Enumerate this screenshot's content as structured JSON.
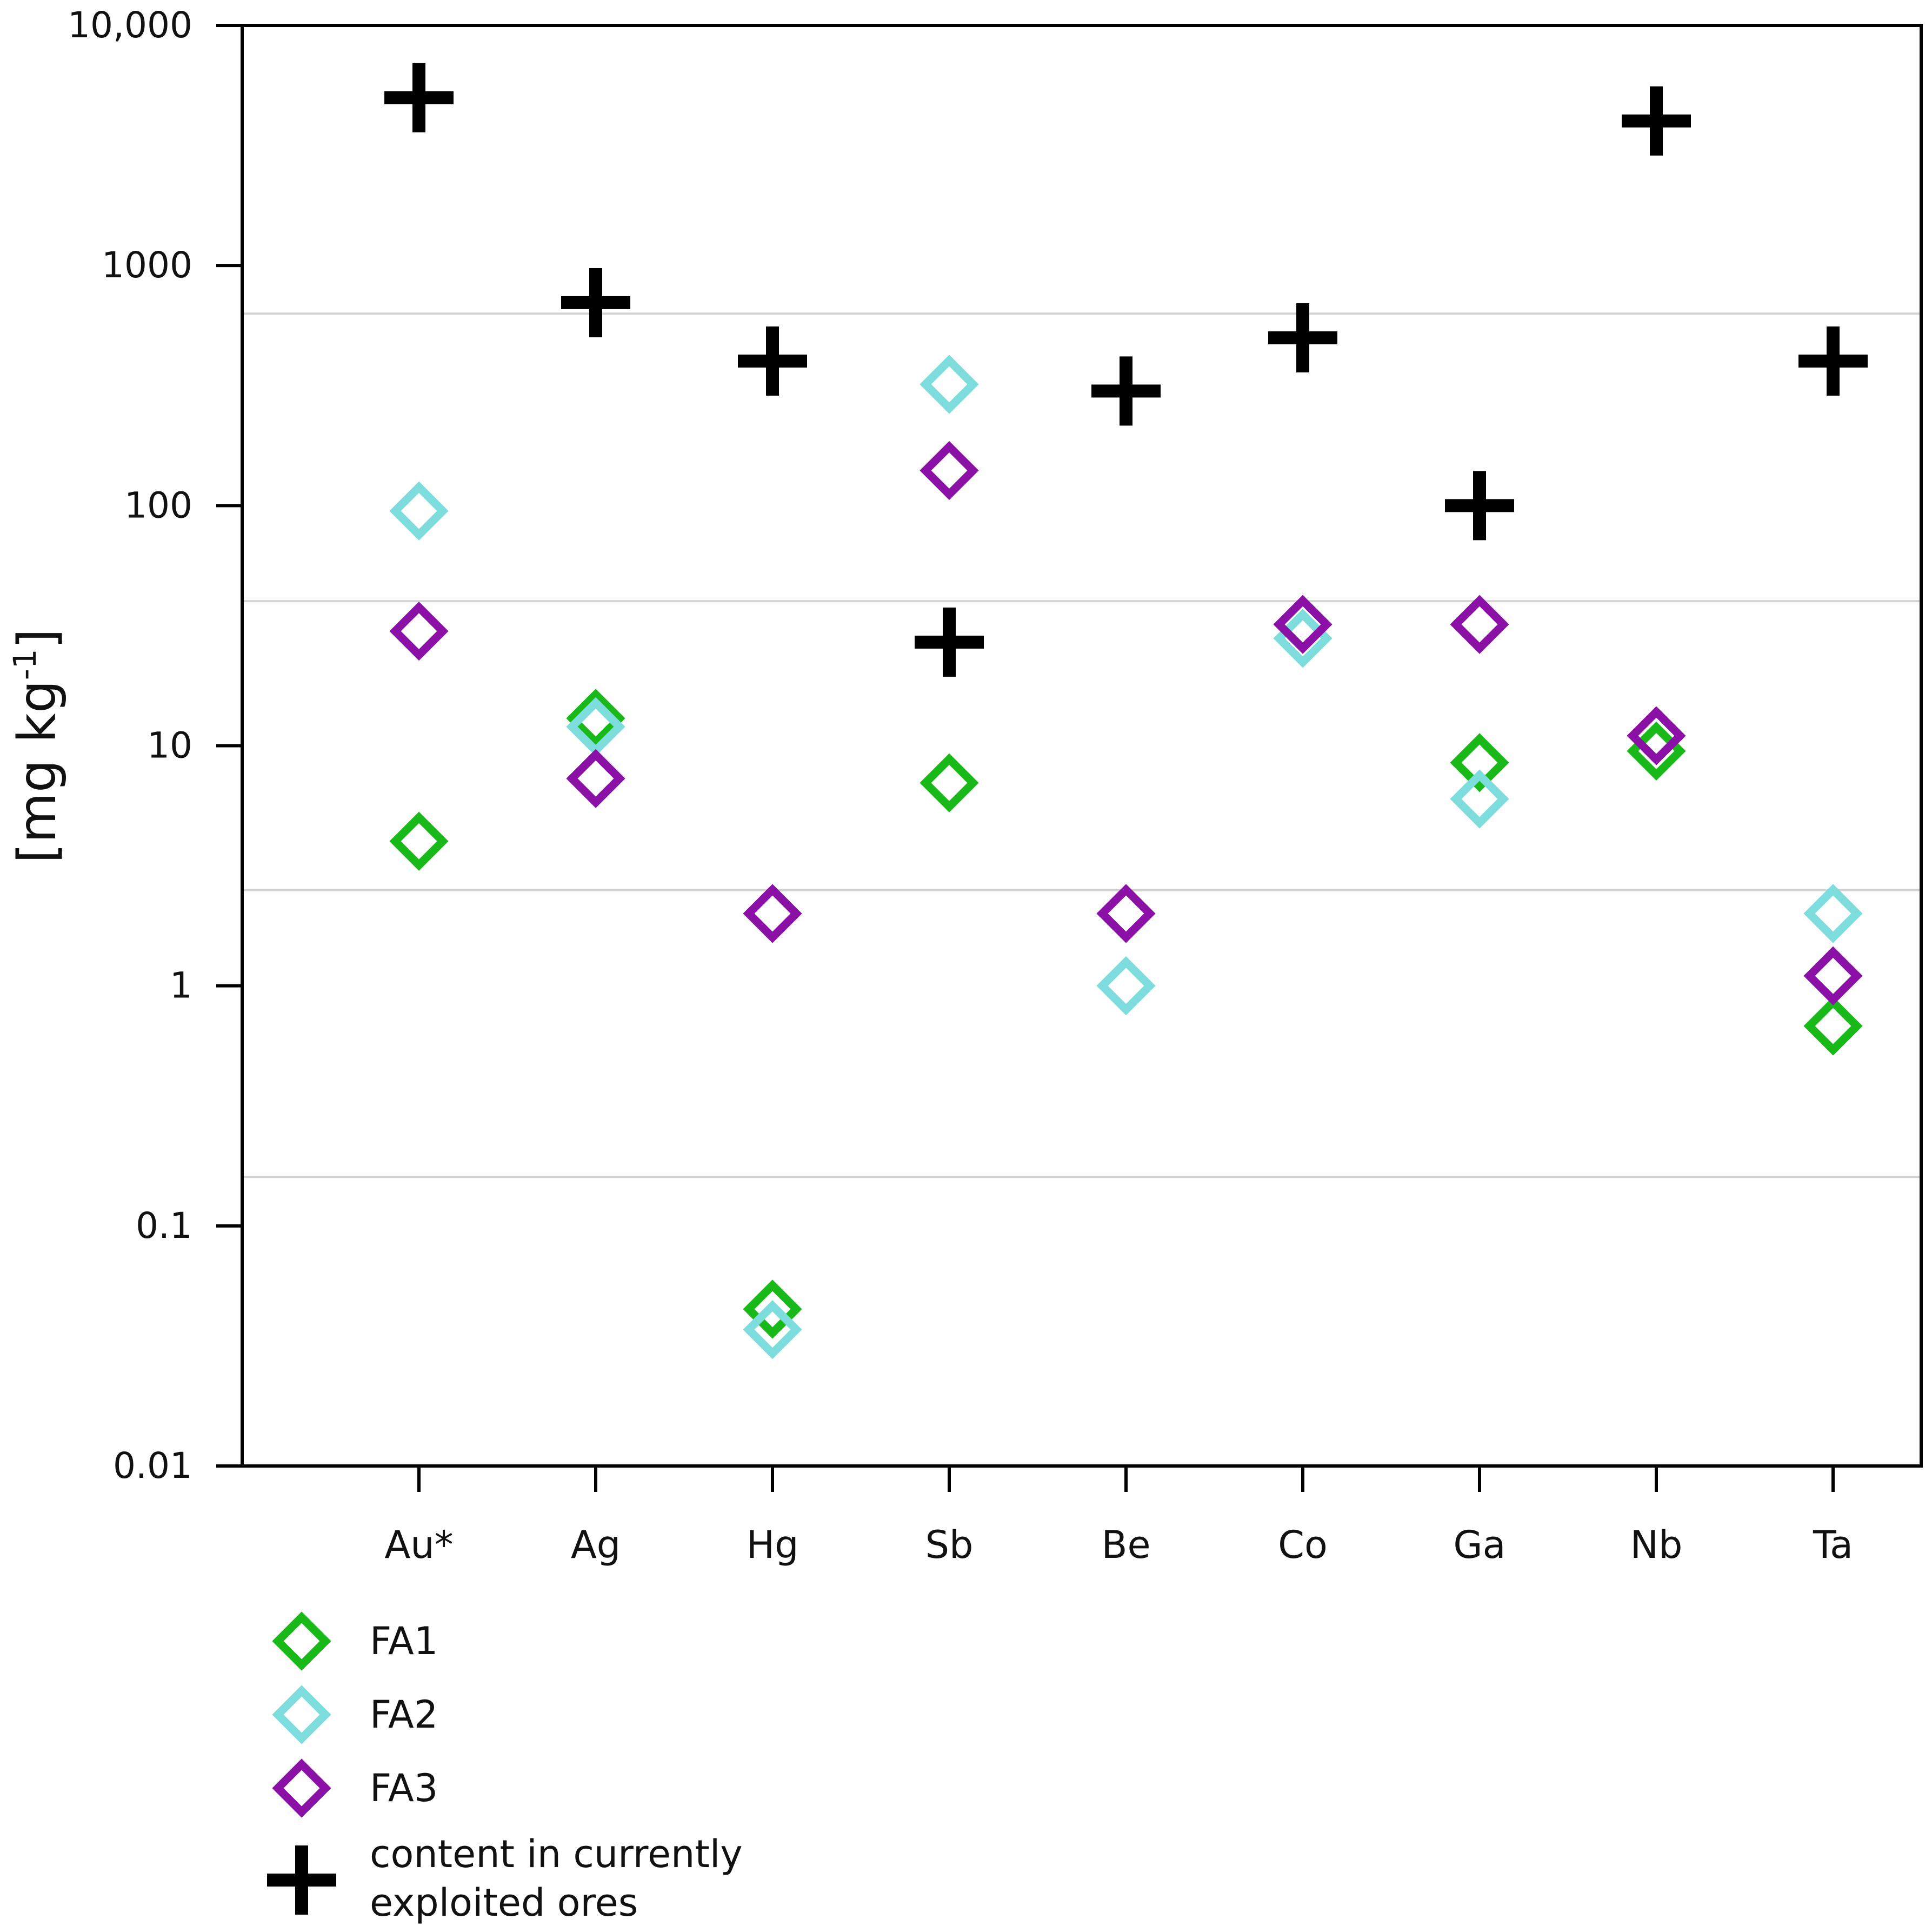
{
  "chart_data": {
    "type": "scatter",
    "title": "",
    "xlabel": "",
    "ylabel": "[mg kg",
    "ylabel_sup": "-1",
    "ylabel_close": "]",
    "yscale": "log",
    "ylim": [
      0.01,
      10000
    ],
    "yticks": [
      {
        "value": 10000,
        "label": "10,000"
      },
      {
        "value": 1000,
        "label": "1000"
      },
      {
        "value": 100,
        "label": "100"
      },
      {
        "value": 10,
        "label": "10"
      },
      {
        "value": 1,
        "label": "1"
      },
      {
        "value": 0.1,
        "label": "0.1"
      },
      {
        "value": 0.01,
        "label": "0.01"
      }
    ],
    "gridlines": [
      630,
      40,
      2.5,
      0.16
    ],
    "categories": [
      "Au*",
      "Ag",
      "Hg",
      "Sb",
      "Be",
      "Co",
      "Ga",
      "Nb",
      "Ta"
    ],
    "series": [
      {
        "name": "FA1",
        "marker": "diamond",
        "color": "#19b919",
        "values": [
          4,
          13,
          0.045,
          7,
          null,
          null,
          8.5,
          9.5,
          0.68
        ]
      },
      {
        "name": "FA2",
        "marker": "diamond",
        "color": "#7ddcdc",
        "values": [
          95,
          12,
          0.037,
          320,
          1,
          28,
          6,
          null,
          2
        ]
      },
      {
        "name": "FA3",
        "marker": "diamond",
        "color": "#8b10a5",
        "values": [
          30,
          7.3,
          2,
          140,
          2,
          32,
          32,
          11,
          1.1
        ]
      },
      {
        "name": "content in currently exploited ores",
        "marker": "plus",
        "color": "#000000",
        "values": [
          5000,
          700,
          400,
          null,
          300,
          500,
          100,
          4000,
          400
        ]
      },
      {
        "name": "content in currently exploited ores (Sb lower mark)",
        "marker": "plus",
        "color": "#000000",
        "legend": false,
        "values": [
          null,
          null,
          null,
          27,
          null,
          null,
          null,
          null,
          null
        ]
      }
    ],
    "legend": {
      "position": "bottom-left",
      "entries": [
        {
          "label": "FA1",
          "marker": "diamond",
          "color": "#19b919"
        },
        {
          "label": "FA2",
          "marker": "diamond",
          "color": "#7ddcdc"
        },
        {
          "label": "FA3",
          "marker": "diamond",
          "color": "#8b10a5"
        },
        {
          "label": "content in currently",
          "label2": "exploited ores",
          "marker": "plus",
          "color": "#000000"
        }
      ]
    }
  }
}
